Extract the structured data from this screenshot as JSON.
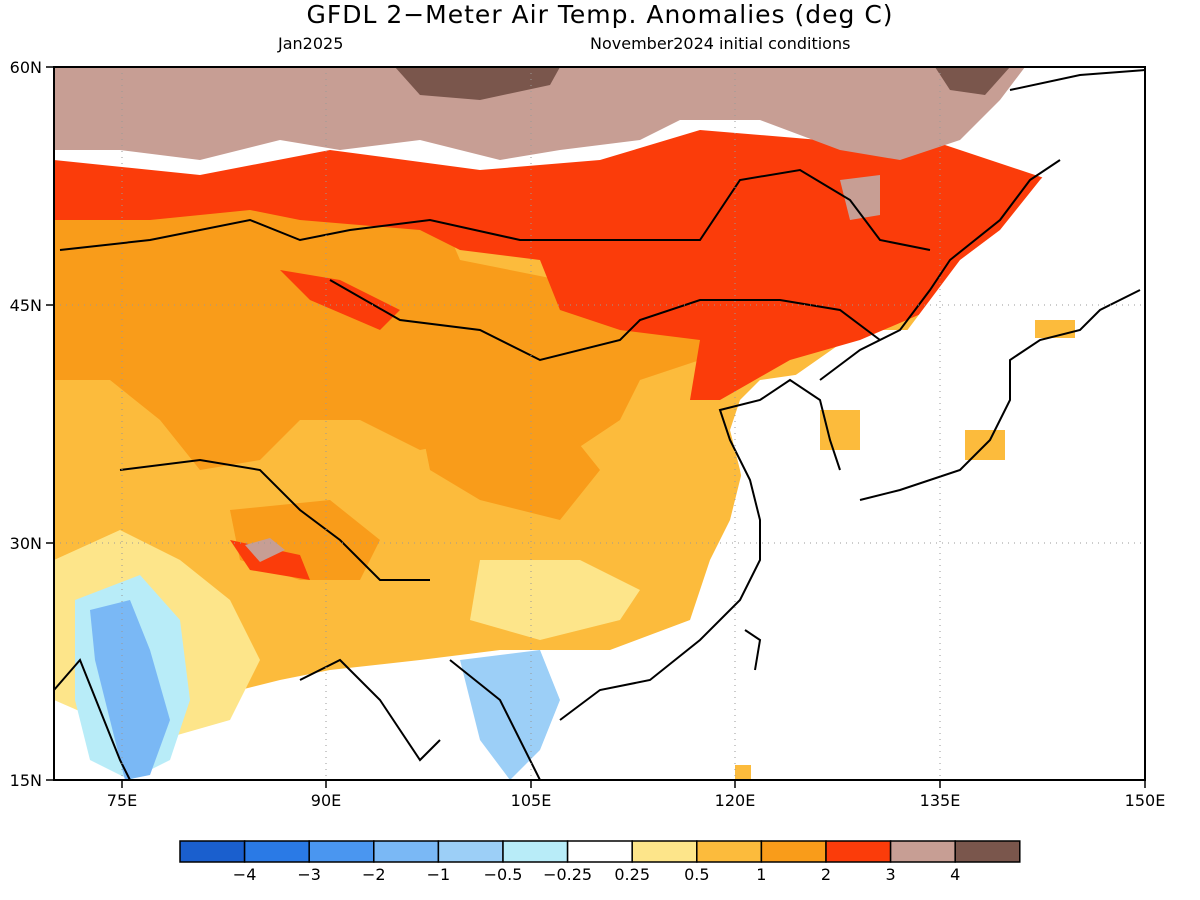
{
  "title": "GFDL 2−Meter Air Temp. Anomalies (deg C)",
  "subtitle_left": "Jan2025",
  "subtitle_right": "November2024 initial conditions",
  "axes": {
    "lon_labels": [
      "75E",
      "90E",
      "105E",
      "120E",
      "135E",
      "150E"
    ],
    "lat_labels": [
      "60N",
      "45N",
      "30N",
      "15N"
    ],
    "lon_range": [
      70,
      150
    ],
    "lat_range": [
      15,
      60
    ],
    "gridlines": "dotted"
  },
  "legend": {
    "labels": [
      "−4",
      "−3",
      "−2",
      "−1",
      "−0.5",
      "−0.25",
      "0.25",
      "0.5",
      "1",
      "2",
      "3",
      "4"
    ],
    "colors": [
      "#1a5fce",
      "#2a7ae6",
      "#4a96f0",
      "#7ab8f5",
      "#9ccff7",
      "#b8ecf8",
      "#ffffff",
      "#fde58a",
      "#fcbb3c",
      "#f99c1a",
      "#fb3c0a",
      "#c79e94",
      "#7a564c"
    ]
  },
  "colors": {
    "neutral": "#ffffff",
    "warm_light": "#fde58a",
    "warm_1": "#fcbb3c",
    "warm_2": "#f99c1a",
    "warm_3": "#fb3c0a",
    "warm_4": "#c79e94",
    "warm_5": "#7a564c",
    "cool_light": "#b8ecf8",
    "cool_1": "#9ccff7",
    "cool_2": "#7ab8f5"
  }
}
